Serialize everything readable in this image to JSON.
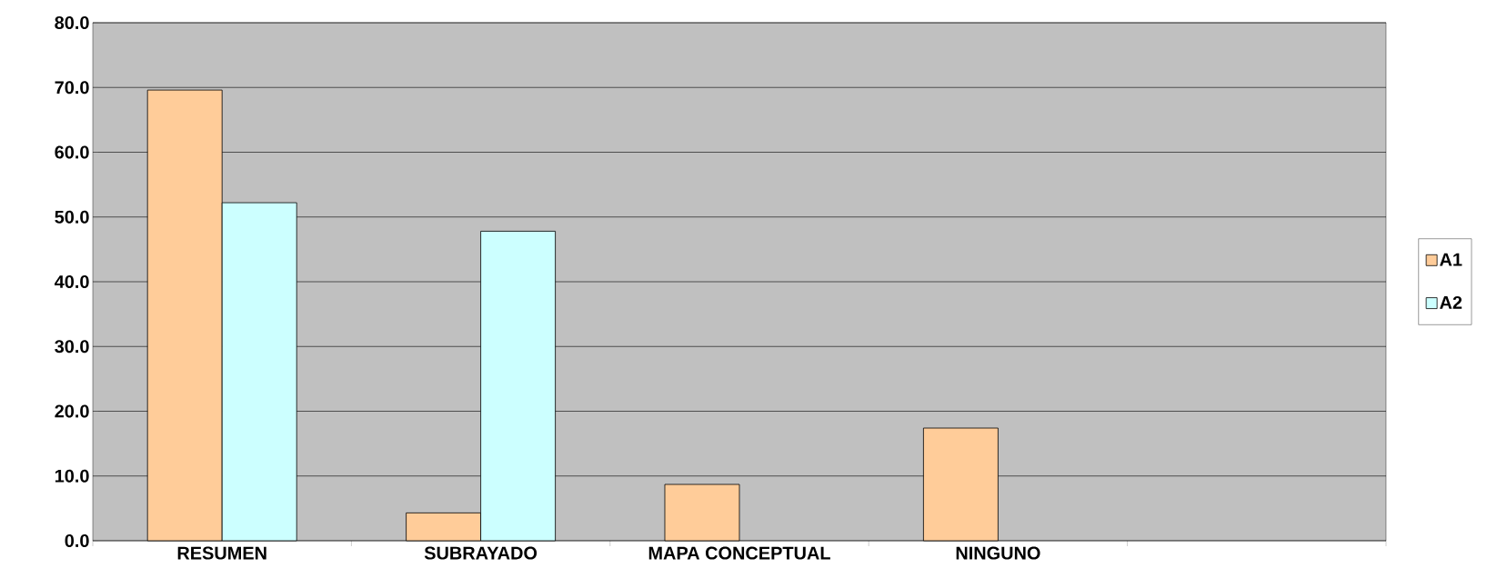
{
  "chart_data": {
    "type": "bar",
    "categories": [
      "RESUMEN",
      "SUBRAYADO",
      "MAPA CONCEPTUAL",
      "NINGUNO",
      null
    ],
    "series": [
      {
        "name": "A1",
        "color": "#ffcc99",
        "values": [
          69.6,
          4.3,
          8.7,
          17.4,
          null
        ]
      },
      {
        "name": "A2",
        "color": "#ccffff",
        "values": [
          52.2,
          47.8,
          null,
          null,
          null
        ]
      }
    ],
    "ylim": [
      0,
      80
    ],
    "yticks": [
      {
        "value": 0,
        "label": "0.0"
      },
      {
        "value": 10,
        "label": "10.0"
      },
      {
        "value": 20,
        "label": "20.0"
      },
      {
        "value": 30,
        "label": "30.0"
      },
      {
        "value": 40,
        "label": "40.0"
      },
      {
        "value": 50,
        "label": "50.0"
      },
      {
        "value": 60,
        "label": "60.0"
      },
      {
        "value": 70,
        "label": "70.0"
      },
      {
        "value": 80,
        "label": "80.0"
      }
    ],
    "grid": "y",
    "legend": "right"
  }
}
